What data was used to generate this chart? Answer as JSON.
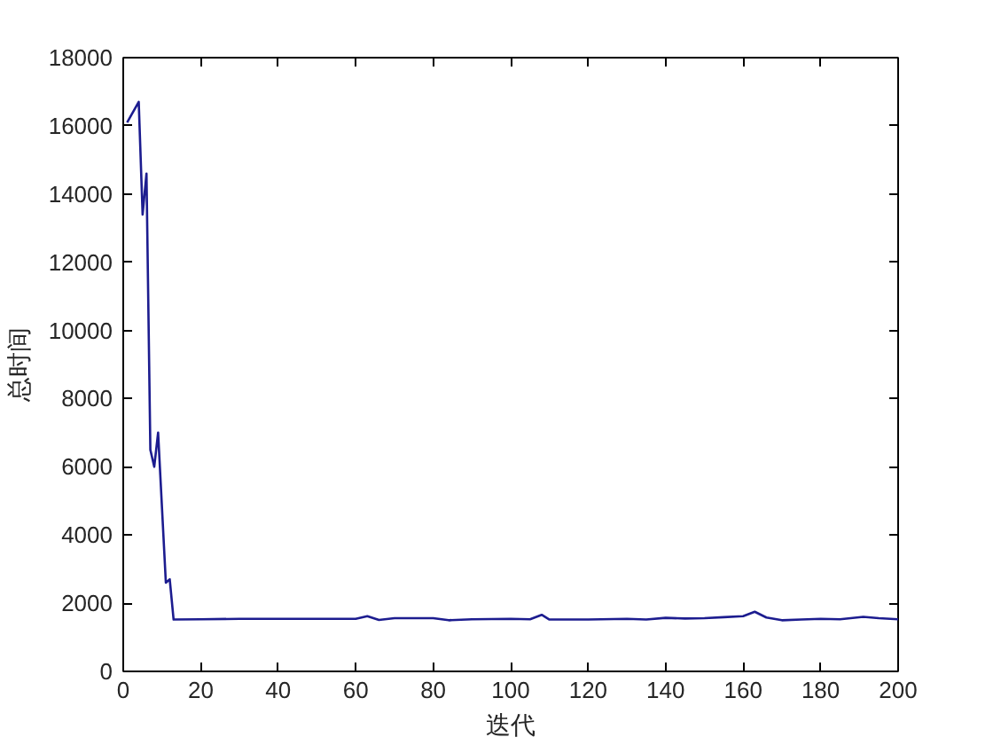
{
  "chart_data": {
    "type": "line",
    "xlabel": "迭代",
    "ylabel": "总时间",
    "x": [
      1,
      2,
      3,
      4,
      5,
      6,
      7,
      8,
      9,
      10,
      11,
      12,
      13,
      20,
      30,
      40,
      50,
      60,
      63,
      66,
      70,
      80,
      84,
      90,
      100,
      105,
      108,
      110,
      120,
      130,
      135,
      140,
      145,
      150,
      155,
      160,
      163,
      166,
      170,
      175,
      180,
      185,
      191,
      195,
      200
    ],
    "series": [
      {
        "color": "#1c1c8f",
        "values": [
          16100,
          16300,
          16500,
          16700,
          13400,
          14600,
          6500,
          6000,
          7000,
          4800,
          2600,
          2700,
          1520,
          1530,
          1540,
          1540,
          1540,
          1540,
          1620,
          1510,
          1560,
          1560,
          1500,
          1530,
          1540,
          1530,
          1660,
          1520,
          1520,
          1540,
          1520,
          1570,
          1550,
          1560,
          1590,
          1620,
          1750,
          1580,
          1500,
          1520,
          1540,
          1530,
          1600,
          1560,
          1530
        ]
      }
    ],
    "xlim": [
      0,
      200
    ],
    "ylim": [
      0,
      18000
    ],
    "xticks": [
      0,
      20,
      40,
      60,
      80,
      100,
      120,
      140,
      160,
      180,
      200
    ],
    "yticks": [
      0,
      2000,
      4000,
      6000,
      8000,
      10000,
      12000,
      14000,
      16000,
      18000
    ],
    "grid": false,
    "line_style": "solid"
  }
}
